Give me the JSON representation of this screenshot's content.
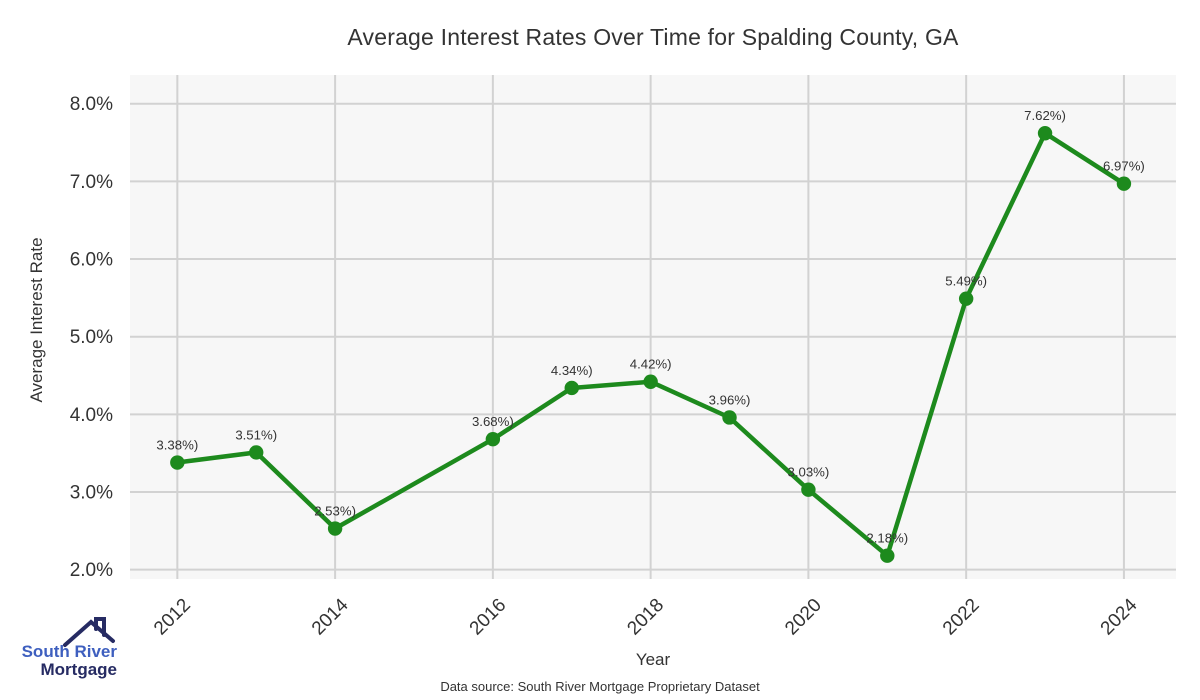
{
  "chart_data": {
    "type": "line",
    "title": "Average Interest Rates Over Time for Spalding County, GA",
    "xlabel": "Year",
    "ylabel": "Average Interest Rate",
    "x": [
      2012,
      2013,
      2014,
      2016,
      2017,
      2018,
      2019,
      2020,
      2021,
      2022,
      2023,
      2024
    ],
    "values": [
      3.38,
      3.51,
      2.53,
      3.68,
      4.34,
      4.42,
      3.96,
      3.03,
      2.18,
      5.49,
      7.62,
      6.97
    ],
    "point_labels": [
      "3.38%)",
      "3.51%)",
      "2.53%)",
      "3.68%)",
      "4.34%)",
      "4.42%)",
      "3.96%)",
      "3.03%)",
      "2.18%)",
      "5.49%)",
      "7.62%)",
      "6.97%)"
    ],
    "xticks": {
      "values": [
        2012,
        2014,
        2016,
        2018,
        2020,
        2022,
        2024
      ],
      "labels": [
        "2012",
        "2014",
        "2016",
        "2018",
        "2020",
        "2022",
        "2024"
      ]
    },
    "yticks": {
      "values": [
        2,
        3,
        4,
        5,
        6,
        7,
        8
      ],
      "labels": [
        "2.0%",
        "3.0%",
        "4.0%",
        "5.0%",
        "6.0%",
        "7.0%",
        "8.0%"
      ]
    },
    "xlim": [
      2011.4,
      2024.66
    ],
    "ylim": [
      1.88,
      8.37
    ],
    "grid": true,
    "legend": null,
    "line_color": "#1d8a1d",
    "marker_color": "#1d8a1d",
    "plot_bg": "#f7f7f7",
    "grid_color": "#d2d2d2",
    "text_color": "#333333"
  },
  "footer": {
    "source_note": "Data source: South River Mortgage Proprietary Dataset"
  },
  "logo": {
    "line1": "South River",
    "line2": "Mortgage",
    "roof_icon": "house-roof-with-chimney",
    "text_color_primary": "#3e5fbf",
    "text_color_secondary": "#262b63"
  }
}
